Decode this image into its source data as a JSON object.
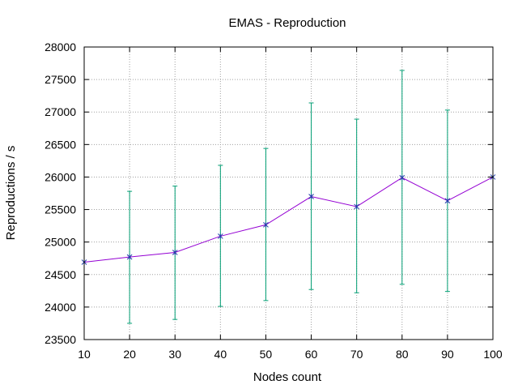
{
  "chart_data": {
    "type": "line",
    "title": "EMAS - Reproduction",
    "xlabel": "Nodes count",
    "ylabel": "Reproductions / s",
    "xlim": [
      10,
      100
    ],
    "ylim": [
      23500,
      28000
    ],
    "x_ticks": [
      10,
      20,
      30,
      40,
      50,
      60,
      70,
      80,
      90,
      100
    ],
    "y_ticks": [
      23500,
      24000,
      24500,
      25000,
      25500,
      26000,
      26500,
      27000,
      27500,
      28000
    ],
    "grid": true,
    "legend": "none",
    "series": [
      {
        "x": [
          10,
          20,
          30,
          40,
          50,
          60,
          70,
          80,
          90,
          100
        ],
        "y": [
          24690,
          24770,
          24840,
          25090,
          25265,
          25700,
          25545,
          25990,
          25635,
          26000
        ],
        "y_low": [
          null,
          23750,
          23810,
          24010,
          24100,
          24270,
          24220,
          24350,
          24240,
          null
        ],
        "y_high": [
          null,
          25780,
          25860,
          26180,
          26440,
          27140,
          26890,
          27640,
          27030,
          null
        ],
        "line_color": "#9400d3",
        "marker_color": "#1f3fa8",
        "errorbar_color": "#009e73"
      }
    ]
  }
}
